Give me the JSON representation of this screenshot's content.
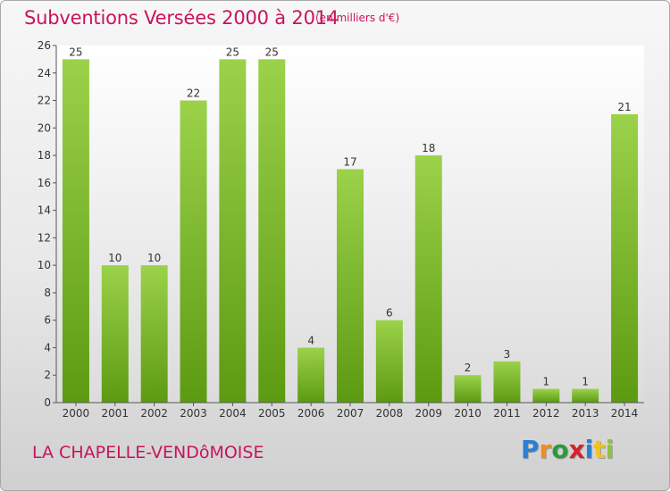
{
  "title": "Subventions Versées 2000 à 2014",
  "subtitle": "(en milliers d'€)",
  "commune": "LA CHAPELLE-VENDôMOISE",
  "logo": {
    "letters": [
      {
        "char": "P",
        "color": "#2a7fd4"
      },
      {
        "char": "r",
        "color": "#f28c1a"
      },
      {
        "char": "o",
        "color": "#2a9a3a"
      },
      {
        "char": "x",
        "color": "#d4232a"
      },
      {
        "char": "i",
        "color": "#2a7fd4"
      },
      {
        "char": "t",
        "color": "#f2c31a"
      },
      {
        "char": "i",
        "color": "#8ac43f"
      }
    ]
  },
  "colors": {
    "title": "#c8145c",
    "bar_light": "#9bd24a",
    "bar_dark": "#5c9a12"
  },
  "chart_data": {
    "type": "bar",
    "categories": [
      "2000",
      "2001",
      "2002",
      "2003",
      "2004",
      "2005",
      "2006",
      "2007",
      "2008",
      "2009",
      "2010",
      "2011",
      "2012",
      "2013",
      "2014"
    ],
    "values": [
      25,
      10,
      10,
      22,
      25,
      25,
      4,
      17,
      6,
      18,
      2,
      3,
      1,
      1,
      21
    ],
    "ylim": [
      0,
      26
    ],
    "yticks": [
      0,
      2,
      4,
      6,
      8,
      10,
      12,
      14,
      16,
      18,
      20,
      22,
      24,
      26
    ],
    "grid": false,
    "legend": "none"
  }
}
